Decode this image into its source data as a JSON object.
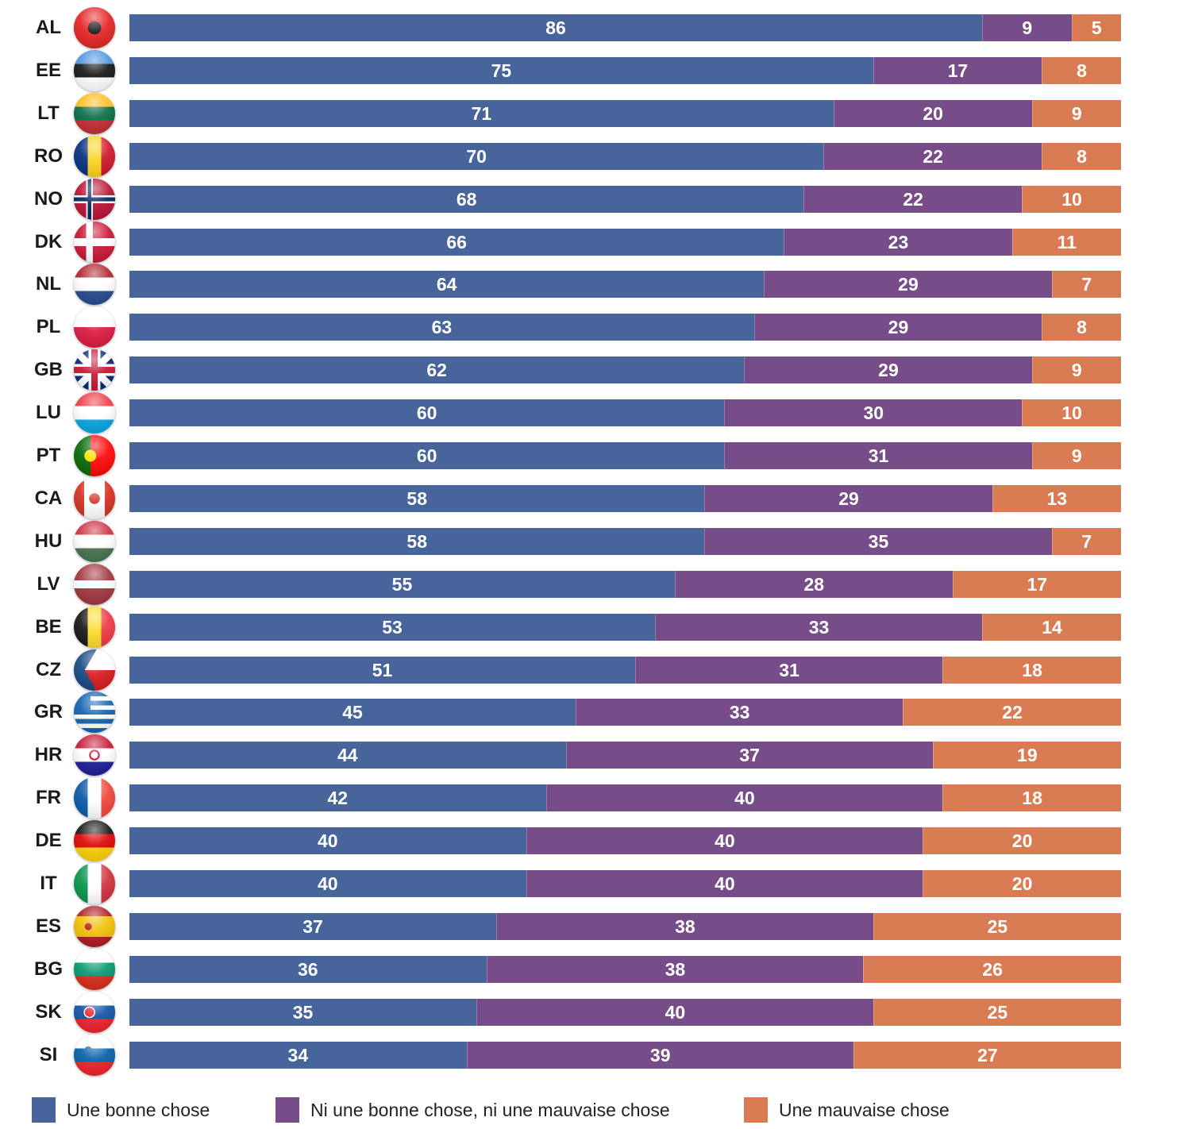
{
  "chart_data": {
    "type": "bar",
    "orientation": "horizontal",
    "stacked": true,
    "normalized_total": 100,
    "title": "",
    "xlabel": "",
    "ylabel": "",
    "xlim": [
      0,
      100
    ],
    "grid": false,
    "legend_position": "bottom",
    "categories": [
      "AL",
      "EE",
      "LT",
      "RO",
      "NO",
      "DK",
      "NL",
      "PL",
      "GB",
      "LU",
      "PT",
      "CA",
      "HU",
      "LV",
      "BE",
      "CZ",
      "GR",
      "HR",
      "FR",
      "DE",
      "IT",
      "ES",
      "BG",
      "SK",
      "SI"
    ],
    "series": [
      {
        "name": "Une bonne chose",
        "color": "#47659B",
        "values": [
          86,
          75,
          71,
          70,
          68,
          66,
          64,
          63,
          62,
          60,
          60,
          58,
          58,
          55,
          53,
          51,
          45,
          44,
          42,
          40,
          40,
          37,
          36,
          35,
          34
        ]
      },
      {
        "name": "Ni une bonne chose, ni une mauvaise chose",
        "color": "#764D88",
        "values": [
          9,
          17,
          20,
          22,
          22,
          23,
          29,
          29,
          29,
          30,
          31,
          29,
          35,
          28,
          33,
          31,
          33,
          37,
          40,
          40,
          40,
          38,
          38,
          40,
          39
        ]
      },
      {
        "name": "Une mauvaise chose",
        "color": "#D97B53",
        "values": [
          5,
          8,
          9,
          8,
          10,
          11,
          7,
          8,
          9,
          10,
          9,
          13,
          7,
          17,
          14,
          18,
          22,
          19,
          18,
          20,
          20,
          25,
          26,
          25,
          27
        ]
      }
    ]
  },
  "flags": {
    "AL": "albania-flag-icon",
    "EE": "estonia-flag-icon",
    "LT": "lithuania-flag-icon",
    "RO": "romania-flag-icon",
    "NO": "norway-flag-icon",
    "DK": "denmark-flag-icon",
    "NL": "netherlands-flag-icon",
    "PL": "poland-flag-icon",
    "GB": "uk-flag-icon",
    "LU": "luxembourg-flag-icon",
    "PT": "portugal-flag-icon",
    "CA": "canada-flag-icon",
    "HU": "hungary-flag-icon",
    "LV": "latvia-flag-icon",
    "BE": "belgium-flag-icon",
    "CZ": "czechia-flag-icon",
    "GR": "greece-flag-icon",
    "HR": "croatia-flag-icon",
    "FR": "france-flag-icon",
    "DE": "germany-flag-icon",
    "IT": "italy-flag-icon",
    "ES": "spain-flag-icon",
    "BG": "bulgaria-flag-icon",
    "SK": "slovakia-flag-icon",
    "SI": "slovenia-flag-icon"
  }
}
